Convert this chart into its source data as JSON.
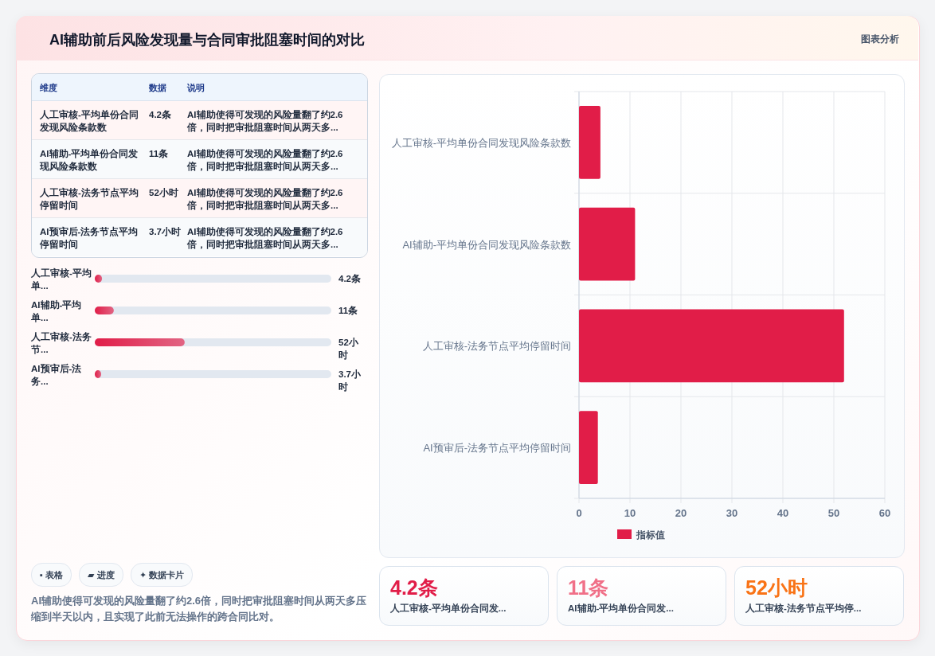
{
  "chart_data": [
    {
      "type": "other",
      "title": "AI辅助前后风险发现量与合同审批阻塞时间的对比",
      "annotations": [
        "图表分析",
        "维度",
        "数据",
        "说明",
        "人工审核-平均单份合同发现风险条款数",
        "4.2条",
        "AI辅助使得可发现的风险量翻了约2.6倍，同时把审批阻塞时间从两天多...",
        "AI辅助-平均单份合同发现风险条款数",
        "11条",
        "AI辅助使得可发现的风险量翻了约2.6倍，同时把审批阻塞时间从两天多...",
        "人工审核-法务节点平均停留时间",
        "52小时",
        "AI辅助使得可发现的风险量翻了约2.6倍，同时把审批阻塞时间从两天多...",
        "AI预审后-法务节点平均停留时间",
        "3.7小时",
        "AI辅助使得可发现的风险量翻了约2.6倍，同时把审批阻塞时间从两天多..."
      ]
    },
    {
      "type": "bar",
      "orientation": "horizontal",
      "categories": [
        "人工审核-平均单...",
        "AI辅助-平均单...",
        "人工审核-法务节...",
        "AI预审后-法务..."
      ],
      "series": [
        {
          "color": "#e11d48",
          "values": [
            4.2,
            11,
            52,
            3.7
          ],
          "value_labels": [
            "4.2条",
            "11条",
            "52小时",
            "3.7小时"
          ]
        }
      ]
    },
    {
      "type": "bar",
      "orientation": "horizontal",
      "categories": [
        "人工审核-平均单份合同发现风险条款数",
        "AI辅助-平均单份合同发现风险条款数",
        "人工审核-法务节点平均停留时间",
        "AI预审后-法务节点平均停留时间"
      ],
      "series": [
        {
          "name": "指标值",
          "color": "#e11d48",
          "values": [
            4.2,
            11,
            52,
            3.7
          ]
        }
      ],
      "xlim": [
        0,
        60
      ],
      "xticks": [
        0,
        10,
        20,
        30,
        40,
        50,
        60
      ],
      "grid": true,
      "legend": "bottom"
    },
    {
      "type": "other",
      "annotations": [
        "▪ 表格",
        "▰ 进度",
        "✦ 数据卡片",
        "AI辅助使得可发现的风险量翻了约2.6倍，同时把审批阻塞时间从两天多压缩到半天以内，且实现了此前无法操作的跨合同比对。"
      ]
    },
    {
      "type": "other",
      "annotations": [
        "4.2条",
        "人工审核-平均单份合同发...",
        "11条",
        "AI辅助-平均单份合同发...",
        "52小时",
        "人工审核-法务节点平均停..."
      ],
      "colors": [
        "#e11d48",
        "#f07088",
        "#f97316"
      ]
    }
  ]
}
